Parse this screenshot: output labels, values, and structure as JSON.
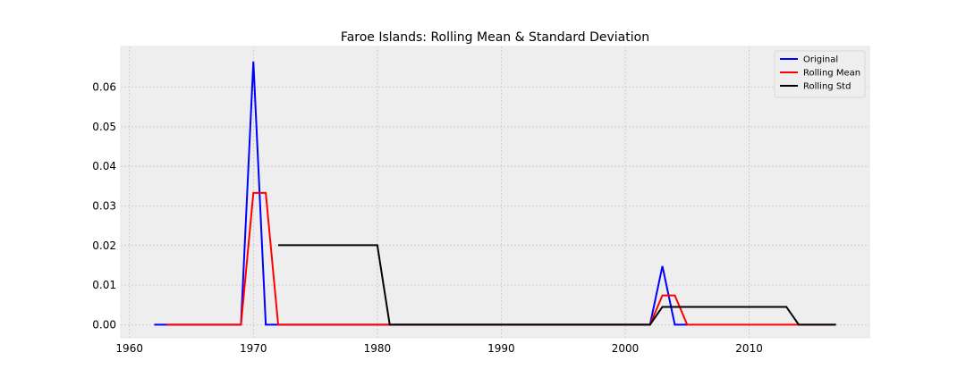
{
  "chart_data": {
    "type": "line",
    "title": "Faroe Islands: Rolling Mean & Standard Deviation",
    "xlabel": "",
    "ylabel": "",
    "xlim": [
      1959.3,
      2019.7
    ],
    "ylim": [
      -0.0033,
      0.0703
    ],
    "x_ticks": [
      1960,
      1970,
      1980,
      1990,
      2000,
      2010
    ],
    "y_ticks": [
      0.0,
      0.01,
      0.02,
      0.03,
      0.04,
      0.05,
      0.06
    ],
    "y_tick_labels": [
      "0.00",
      "0.01",
      "0.02",
      "0.03",
      "0.04",
      "0.05",
      "0.06"
    ],
    "grid": true,
    "legend_position": "top-right",
    "series": [
      {
        "name": "Original",
        "color": "#0000ff",
        "points": [
          [
            1962,
            0.0
          ],
          [
            1969,
            0.0
          ],
          [
            1970,
            0.0665
          ],
          [
            1971,
            0.0
          ],
          [
            1972,
            0.0
          ],
          [
            2002,
            0.0
          ],
          [
            2003,
            0.0148
          ],
          [
            2004,
            0.0
          ],
          [
            2005,
            0.0
          ]
        ]
      },
      {
        "name": "Rolling Mean",
        "color": "#ff0000",
        "points": [
          [
            1963,
            0.0
          ],
          [
            1969,
            0.0
          ],
          [
            1970,
            0.0333
          ],
          [
            1971,
            0.0333
          ],
          [
            1972,
            0.0
          ],
          [
            2002,
            0.0
          ],
          [
            2003,
            0.0074
          ],
          [
            2004,
            0.0074
          ],
          [
            2005,
            0.0
          ],
          [
            2017,
            0.0
          ]
        ]
      },
      {
        "name": "Rolling Std",
        "color": "#000000",
        "points": [
          [
            1972,
            0.0201
          ],
          [
            1980,
            0.0201
          ],
          [
            1981,
            0.0
          ],
          [
            2002,
            0.0
          ],
          [
            2003,
            0.0045
          ],
          [
            2013,
            0.0045
          ],
          [
            2014,
            0.0
          ],
          [
            2017,
            0.0
          ]
        ]
      }
    ]
  }
}
